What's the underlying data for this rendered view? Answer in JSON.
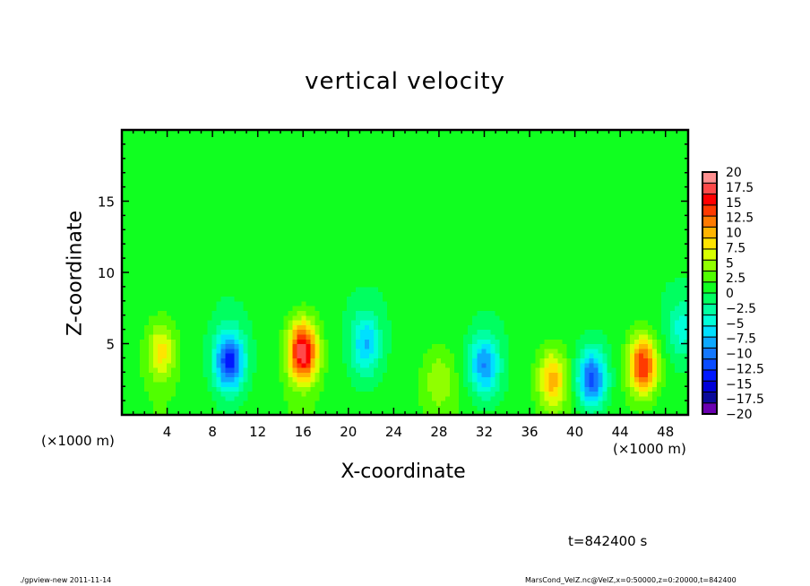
{
  "chart_data": {
    "type": "heatmap",
    "title": "vertical velocity",
    "xlabel": "X-coordinate",
    "ylabel": "Z-coordinate",
    "x_unit_label": "(×1000 m)",
    "xlim": [
      0,
      50
    ],
    "ylim": [
      0,
      20
    ],
    "x_ticks": [
      4,
      8,
      12,
      16,
      20,
      24,
      28,
      32,
      36,
      40,
      44,
      48
    ],
    "x_tick_labels": [
      "4",
      "8",
      "12",
      "16",
      "20",
      "24",
      "28",
      "32",
      "36",
      "40",
      "44",
      "48"
    ],
    "y_ticks": [
      5,
      10,
      15
    ],
    "y_tick_labels": [
      "5",
      "10",
      "15"
    ],
    "grid": false,
    "colorbar": {
      "range": [
        -20,
        20
      ],
      "labels": [
        "20",
        "17.5",
        "15",
        "12.5",
        "10",
        "7.5",
        "5",
        "2.5",
        "0",
        "−2.5",
        "−5",
        "−7.5",
        "−10",
        "−12.5",
        "−15",
        "−17.5",
        "−20"
      ],
      "colors": [
        "#6a00b0",
        "#0a0a9a",
        "#0000d8",
        "#0018ff",
        "#0a4cff",
        "#1478ff",
        "#0ca8ff",
        "#00e0ff",
        "#00ffd8",
        "#00ffa0",
        "#00ff60",
        "#10ff20",
        "#50ff00",
        "#90ff00",
        "#d8ff00",
        "#ffe400",
        "#ffb400",
        "#ff7a00",
        "#ff3a00",
        "#ff0000",
        "#ff4a4a",
        "#ff9090"
      ]
    },
    "extrema": [
      {
        "x": 3.5,
        "z": 4.5,
        "value": 7
      },
      {
        "x": 9.5,
        "z": 3.8,
        "value": -14
      },
      {
        "x": 16,
        "z": 4.5,
        "value": 17
      },
      {
        "x": 21.5,
        "z": 5,
        "value": -8
      },
      {
        "x": 28,
        "z": 2.5,
        "value": 4
      },
      {
        "x": 32,
        "z": 3.5,
        "value": -10
      },
      {
        "x": 38,
        "z": 2.5,
        "value": 9
      },
      {
        "x": 41.5,
        "z": 2.5,
        "value": -13
      },
      {
        "x": 46,
        "z": 3.5,
        "value": 14
      },
      {
        "x": 49.5,
        "z": 6,
        "value": -5
      }
    ]
  },
  "annotations": {
    "time": "t=842400 s",
    "footer_left": "./gpview-new  2011-11-14",
    "footer_right": "MarsCond_VelZ.nc@VelZ,x=0:50000,z=0:20000,t=842400"
  }
}
